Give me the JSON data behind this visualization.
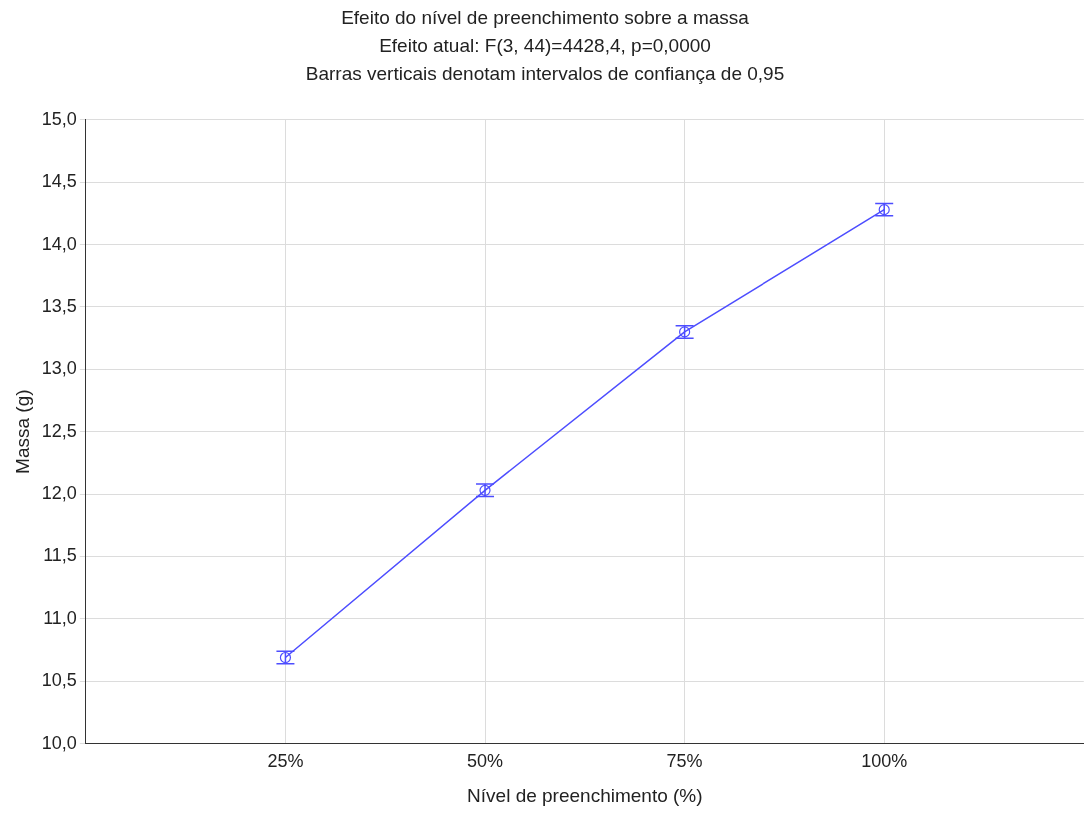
{
  "chart_data": {
    "type": "line",
    "title": "Efeito do nível de preenchimento sobre a massa",
    "subtitle": "Efeito atual: F(3, 44)=4428,4, p=0,0000",
    "annotations": [
      "Barras verticais denotam intervalos de confiança de 0,95"
    ],
    "xlabel": "Nível de preenchimento (%)",
    "ylabel": "Massa (g)",
    "categories": [
      "25%",
      "50%",
      "75%",
      "100%"
    ],
    "series": [
      {
        "color": "#4d4dff",
        "values": [
          10.69,
          12.03,
          13.3,
          14.28
        ],
        "errors": [
          0.05,
          0.05,
          0.05,
          0.05
        ]
      }
    ],
    "ylim": [
      10,
      15
    ],
    "yticks": [
      {
        "value": 10,
        "label": "10,0"
      },
      {
        "value": 10.5,
        "label": "10,5"
      },
      {
        "value": 11,
        "label": "11,0"
      },
      {
        "value": 11.5,
        "label": "11,5"
      },
      {
        "value": 12,
        "label": "12,0"
      },
      {
        "value": 12.5,
        "label": "12,5"
      },
      {
        "value": 13,
        "label": "13,0"
      },
      {
        "value": 13.5,
        "label": "13,5"
      },
      {
        "value": 14,
        "label": "14,0"
      },
      {
        "value": 14.5,
        "label": "14,5"
      },
      {
        "value": 15,
        "label": "15,0"
      }
    ],
    "grid": true,
    "legend": false,
    "marker": "circle",
    "line_style": "solid"
  }
}
